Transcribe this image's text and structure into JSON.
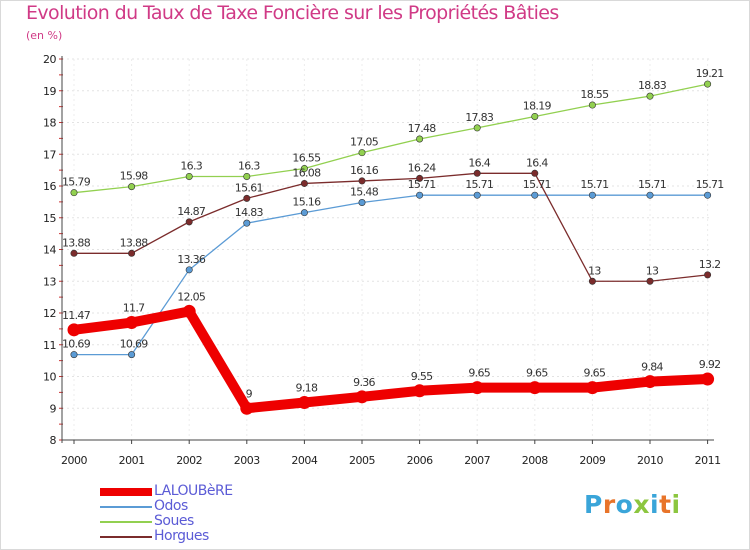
{
  "title": "Evolution du Taux de Taxe Foncière sur les Propriétés Bâties",
  "unit_label": "(en %)",
  "logo": {
    "text": "Proxiti",
    "colors": [
      "#3aa5d9",
      "#e8742a",
      "#3aa5d9",
      "#8cc63f",
      "#3aa5d9",
      "#e8742a",
      "#8cc63f"
    ]
  },
  "chart_data": {
    "type": "line",
    "title": "Evolution du Taux de Taxe Foncière sur les Propriétés Bâties",
    "ylabel": "(en %)",
    "xlabel": "",
    "ylim": [
      8,
      20
    ],
    "yticks": [
      "8",
      "9",
      "10",
      "11",
      "12",
      "13",
      "14",
      "15",
      "16",
      "17",
      "18",
      "19",
      "20"
    ],
    "categories": [
      "2000",
      "2001",
      "2002",
      "2003",
      "2004",
      "2005",
      "2006",
      "2007",
      "2008",
      "2009",
      "2010",
      "2011"
    ],
    "series": [
      {
        "name": "LALOUBèRE",
        "color": "#ee0000",
        "bold": true,
        "values": [
          11.47,
          11.7,
          12.05,
          9,
          9.18,
          9.36,
          9.55,
          9.65,
          9.65,
          9.65,
          9.84,
          9.92
        ],
        "labels": [
          "11.47",
          "11.7",
          "12.05",
          "9",
          "9.18",
          "9.36",
          "9.55",
          "9.65",
          "9.65",
          "9.65",
          "9.84",
          "9.92"
        ]
      },
      {
        "name": "Odos",
        "color": "#5b9bd5",
        "bold": false,
        "values": [
          10.69,
          10.69,
          13.36,
          14.83,
          15.16,
          15.48,
          15.71,
          15.71,
          15.71,
          15.71,
          15.71,
          15.71
        ],
        "labels": [
          "10.69",
          "10.69",
          "13.36",
          "14.83",
          "15.16",
          "15.48",
          "15.71",
          "15.71",
          "15.71",
          "15.71",
          "15.71",
          "15.71"
        ]
      },
      {
        "name": "Soues",
        "color": "#92d050",
        "bold": false,
        "values": [
          15.79,
          15.98,
          16.3,
          16.3,
          16.55,
          17.05,
          17.48,
          17.83,
          18.19,
          18.55,
          18.83,
          19.21
        ],
        "labels": [
          "15.79",
          "15.98",
          "16.3",
          "16.3",
          "16.55",
          "17.05",
          "17.48",
          "17.83",
          "18.19",
          "18.55",
          "18.83",
          "19.21"
        ]
      },
      {
        "name": "Horgues",
        "color": "#7b2c2c",
        "bold": false,
        "values": [
          13.88,
          13.88,
          14.87,
          15.61,
          16.08,
          16.16,
          16.24,
          16.4,
          16.4,
          13,
          13,
          13.2
        ],
        "labels": [
          "13.88",
          "13.88",
          "14.87",
          "15.61",
          "16.08",
          "16.16",
          "16.24",
          "16.4",
          "16.4",
          "13",
          "13",
          "13.2"
        ]
      }
    ]
  }
}
